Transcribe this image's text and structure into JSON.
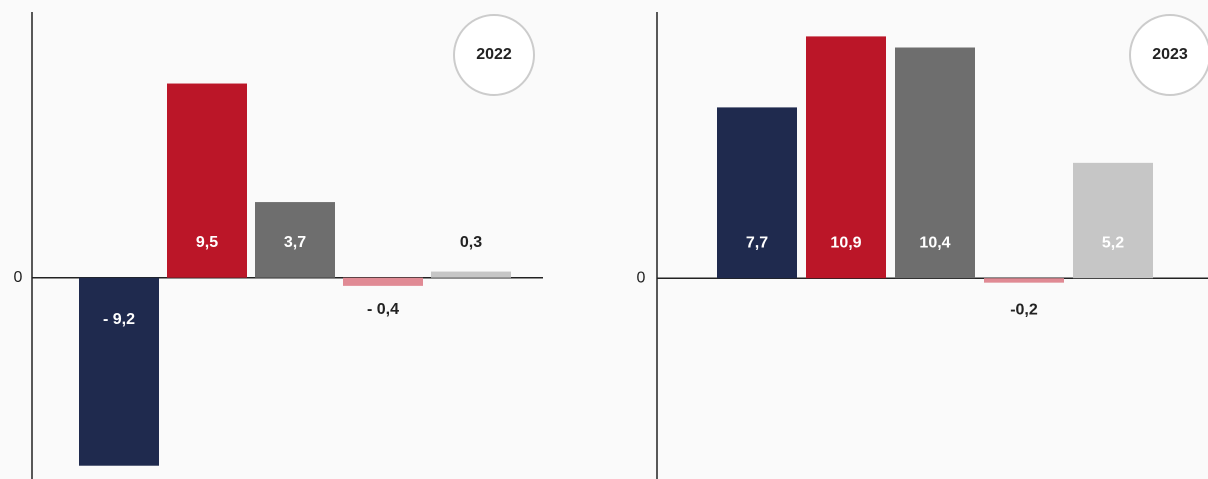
{
  "chart_data": [
    {
      "type": "bar",
      "title": "2022",
      "categories": [
        null,
        null,
        null,
        null,
        null
      ],
      "values": [
        -9.2,
        9.5,
        3.7,
        -0.4,
        0.3
      ],
      "value_labels": [
        "- 9,2",
        "9,5",
        "3,7",
        "- 0,4",
        "0,3"
      ],
      "colors": [
        "#1f2a4e",
        "#bb1628",
        "#6e6e6e",
        "#e08a94",
        "#c6c6c6"
      ],
      "ylim": [
        -9.85,
        13
      ],
      "yticks": [
        0
      ]
    },
    {
      "type": "bar",
      "title": "2023",
      "categories": [
        null,
        null,
        null,
        null,
        null
      ],
      "values": [
        7.7,
        10.9,
        10.4,
        -0.2,
        5.2
      ],
      "value_labels": [
        "7,7",
        "10,9",
        "10,4",
        "-0,2",
        "5,2"
      ],
      "colors": [
        "#1f2a4e",
        "#bb1628",
        "#6e6e6e",
        "#e08a94",
        "#c6c6c6"
      ],
      "ylim": [
        -9.05,
        12
      ],
      "yticks": [
        0
      ]
    }
  ]
}
